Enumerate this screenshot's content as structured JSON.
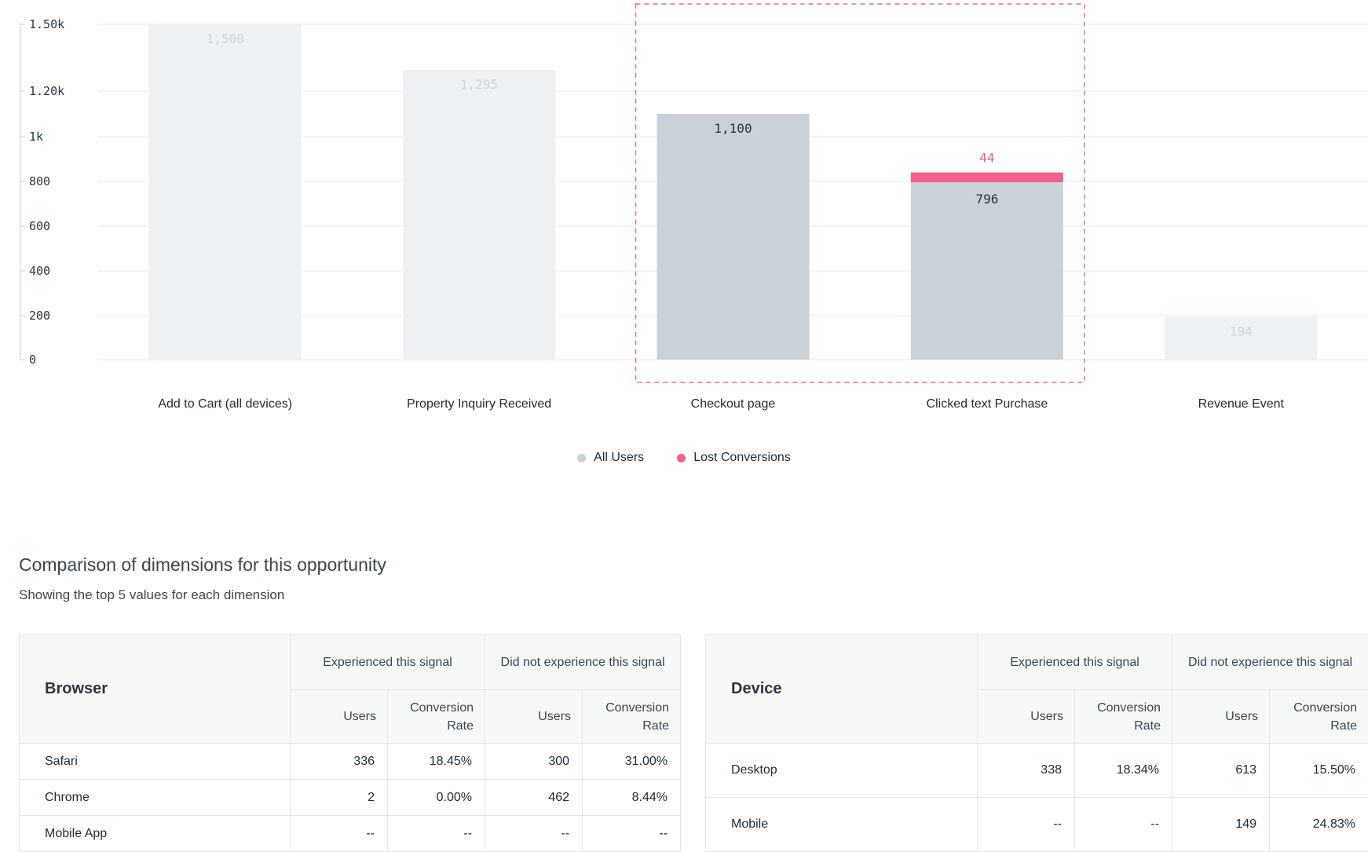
{
  "chart_data": {
    "type": "bar",
    "categories": [
      "Add to Cart (all devices)",
      "Property Inquiry Received",
      "Checkout page",
      "Clicked text Purchase",
      "Revenue Event"
    ],
    "series": [
      {
        "name": "All Users",
        "values": [
          1500,
          1295,
          1100,
          796,
          194
        ],
        "labels": [
          "1,500",
          "1,295",
          "1,100",
          "796",
          "194"
        ]
      },
      {
        "name": "Lost Conversions",
        "values": [
          0,
          0,
          0,
          44,
          0
        ],
        "labels": [
          "",
          "",
          "",
          "44",
          ""
        ]
      }
    ],
    "highlighted": [
      false,
      false,
      true,
      true,
      false
    ],
    "yticks": [
      {
        "value": 0,
        "label": "0"
      },
      {
        "value": 200,
        "label": "200"
      },
      {
        "value": 400,
        "label": "400"
      },
      {
        "value": 600,
        "label": "600"
      },
      {
        "value": 800,
        "label": "800"
      },
      {
        "value": 1000,
        "label": "1k"
      },
      {
        "value": 1200,
        "label": "1.20k"
      },
      {
        "value": 1500,
        "label": "1.50k"
      }
    ],
    "ylim": [
      0,
      1500
    ],
    "legend_position": "bottom-center"
  },
  "colors": {
    "bar_active": "#c8d2d8",
    "bar_muted": "#eef1f3",
    "lost": "#f2608a",
    "label_muted": "#cdd4d9",
    "label_active": "#2b3640",
    "grid": "#e8eaec",
    "selection": "#e8708a"
  },
  "legend": {
    "all_users": "All Users",
    "lost_conversions": "Lost Conversions"
  },
  "comparison": {
    "title": "Comparison of dimensions for this opportunity",
    "subtitle": "Showing the top 5 values for each dimension"
  },
  "browser_table": {
    "dimension": "Browser",
    "group1": "Experienced this signal",
    "group2": "Did not experience this signal",
    "users": "Users",
    "conv_rate": "Conversion Rate",
    "rows": [
      {
        "name": "Safari",
        "exp_users": "336",
        "exp_rate": "18.45%",
        "not_users": "300",
        "not_rate": "31.00%"
      },
      {
        "name": "Chrome",
        "exp_users": "2",
        "exp_rate": "0.00%",
        "not_users": "462",
        "not_rate": "8.44%"
      },
      {
        "name": "Mobile App",
        "exp_users": "--",
        "exp_rate": "--",
        "not_users": "--",
        "not_rate": "--"
      }
    ]
  },
  "device_table": {
    "dimension": "Device",
    "group1": "Experienced this signal",
    "group2": "Did not experience this signal",
    "users": "Users",
    "conv_rate": "Conversion Rate",
    "rows": [
      {
        "name": "Desktop",
        "exp_users": "338",
        "exp_rate": "18.34%",
        "not_users": "613",
        "not_rate": "15.50%"
      },
      {
        "name": "Mobile",
        "exp_users": "--",
        "exp_rate": "--",
        "not_users": "149",
        "not_rate": "24.83%"
      }
    ]
  }
}
